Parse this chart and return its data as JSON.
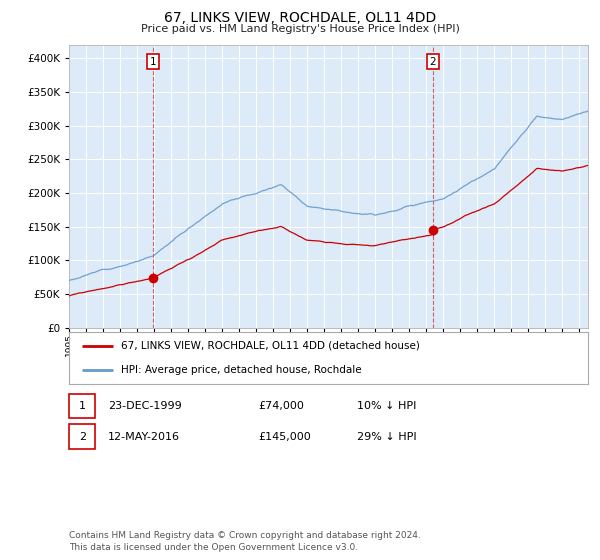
{
  "title": "67, LINKS VIEW, ROCHDALE, OL11 4DD",
  "subtitle": "Price paid vs. HM Land Registry's House Price Index (HPI)",
  "background_color": "#ffffff",
  "plot_bg_color": "#ddeaf7",
  "grid_color": "#ffffff",
  "hpi_color": "#6699cc",
  "price_color": "#cc0000",
  "xmin": 1995.0,
  "xmax": 2025.5,
  "ymin": 0,
  "ymax": 420000,
  "ytick_interval": 50000,
  "p1_date": 1999.96,
  "p1_price": 74000,
  "p2_date": 2016.37,
  "p2_price": 145000,
  "legend_entry1": "67, LINKS VIEW, ROCHDALE, OL11 4DD (detached house)",
  "legend_entry2": "HPI: Average price, detached house, Rochdale",
  "table_row1": [
    "1",
    "23-DEC-1999",
    "£74,000",
    "10% ↓ HPI"
  ],
  "table_row2": [
    "2",
    "12-MAY-2016",
    "£145,000",
    "29% ↓ HPI"
  ],
  "footnote": "Contains HM Land Registry data © Crown copyright and database right 2024.\nThis data is licensed under the Open Government Licence v3.0."
}
